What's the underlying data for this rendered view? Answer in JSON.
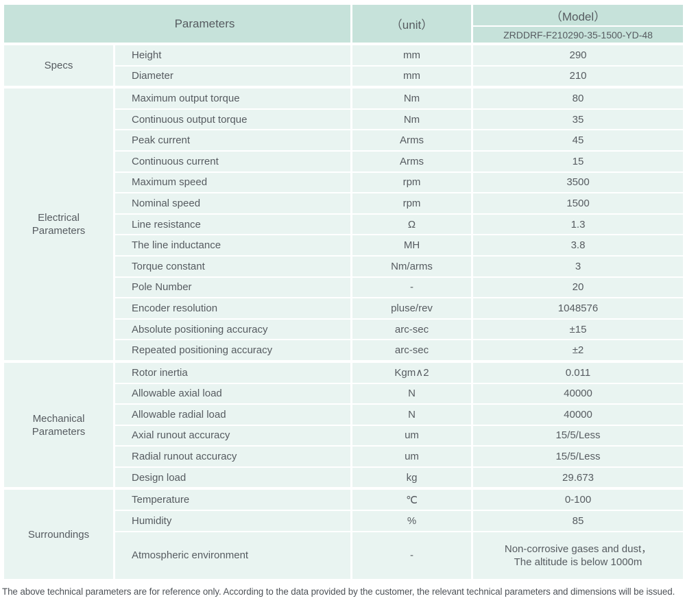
{
  "colors": {
    "header_bg": "#c6e2da",
    "row_bg": "#e9f4f1",
    "text": "#565b60",
    "separator": "#ffffff"
  },
  "table": {
    "header": {
      "parameters_label": "Parameters",
      "unit_label": "（unit）",
      "model_label": "（Model）",
      "model_value": "ZRDDRF-F210290-35-1500-YD-48"
    },
    "groups": [
      {
        "label": "Specs",
        "rows": [
          {
            "param": "Height",
            "unit": "mm",
            "value": "290"
          },
          {
            "param": "Diameter",
            "unit": "mm",
            "value": "210"
          }
        ]
      },
      {
        "label": "Electrical\nParameters",
        "rows": [
          {
            "param": "Maximum output torque",
            "unit": "Nm",
            "value": "80"
          },
          {
            "param": "Continuous output torque",
            "unit": "Nm",
            "value": "35"
          },
          {
            "param": "Peak current",
            "unit": "Arms",
            "value": "45"
          },
          {
            "param": "Continuous current",
            "unit": "Arms",
            "value": "15"
          },
          {
            "param": "Maximum speed",
            "unit": "rpm",
            "value": "3500"
          },
          {
            "param": "Nominal speed",
            "unit": "rpm",
            "value": "1500"
          },
          {
            "param": "Line resistance",
            "unit": "Ω",
            "value": "1.3"
          },
          {
            "param": "The line inductance",
            "unit": "MH",
            "value": "3.8"
          },
          {
            "param": "Torque constant",
            "unit": "Nm/arms",
            "value": "3"
          },
          {
            "param": "Pole Number",
            "unit": "-",
            "value": "20"
          },
          {
            "param": "Encoder resolution",
            "unit": "pluse/rev",
            "value": "1048576"
          },
          {
            "param": "Absolute positioning accuracy",
            "unit": "arc-sec",
            "value": "±15"
          },
          {
            "param": "Repeated positioning accuracy",
            "unit": "arc-sec",
            "value": "±2"
          }
        ]
      },
      {
        "label": "Mechanical\nParameters",
        "rows": [
          {
            "param": "Rotor inertia",
            "unit": "Kgm∧2",
            "value": "0.011"
          },
          {
            "param": "Allowable axial load",
            "unit": "N",
            "value": "40000"
          },
          {
            "param": "Allowable radial load",
            "unit": "N",
            "value": "40000"
          },
          {
            "param": "Axial runout accuracy",
            "unit": "um",
            "value": "15/5/Less"
          },
          {
            "param": "Radial runout accuracy",
            "unit": "um",
            "value": "15/5/Less"
          },
          {
            "param": "Design load",
            "unit": "kg",
            "value": "29.673"
          }
        ]
      },
      {
        "label": "Surroundings",
        "rows": [
          {
            "param": "Temperature",
            "unit": "℃",
            "value": "0-100"
          },
          {
            "param": "Humidity",
            "unit": "%",
            "value": "85"
          },
          {
            "param": "Atmospheric environment",
            "unit": "-",
            "value": "Non-corrosive gases and dust，\nThe altitude is below 1000m"
          }
        ]
      }
    ]
  },
  "footer": {
    "note": "The above technical parameters are for reference only. According to the data provided by the customer, the relevant technical parameters and dimensions will be issued."
  }
}
